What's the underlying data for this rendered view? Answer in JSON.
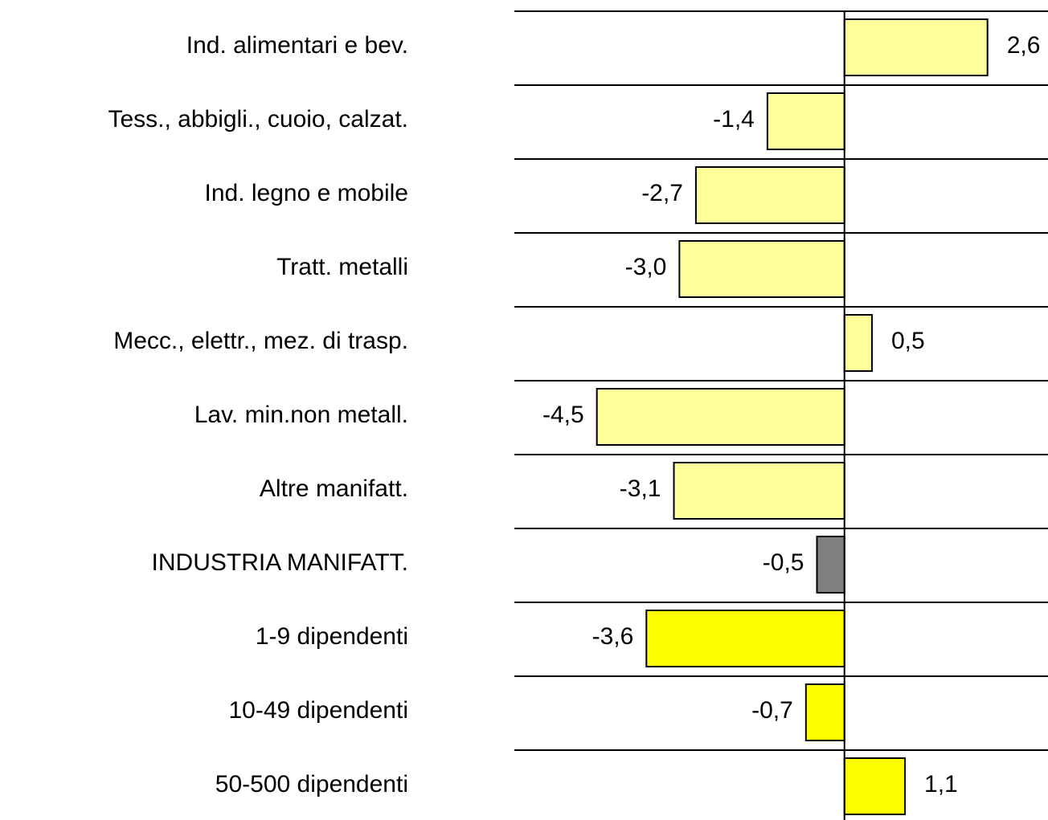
{
  "chart_data": {
    "type": "hbar",
    "categories": [
      "Ind. alimentari e bev.",
      "Tess., abbigli., cuoio, calzat.",
      "Ind. legno e mobile",
      "Tratt. metalli",
      "Mecc., elettr., mez. di trasp.",
      "Lav. min.non metall.",
      "Altre manifatt.",
      "INDUSTRIA MANIFATT.",
      "1-9 dipendenti",
      "10-49 dipendenti",
      "50-500 dipendenti"
    ],
    "values": [
      2.6,
      -1.4,
      -2.7,
      -3.0,
      0.5,
      -4.5,
      -3.1,
      -0.5,
      -3.6,
      -0.7,
      1.1
    ],
    "value_labels": [
      "2,6",
      "-1,4",
      "-2,7",
      "-3,0",
      "0,5",
      "-4,5",
      "-3,1",
      "-0,5",
      "-3,6",
      "-0,7",
      "1,1"
    ],
    "colors": [
      "#ffff99",
      "#ffff99",
      "#ffff99",
      "#ffff99",
      "#ffff99",
      "#ffff99",
      "#ffff99",
      "#808080",
      "#ffff00",
      "#ffff00",
      "#ffff00"
    ],
    "xlim": [
      -6,
      3.7
    ]
  }
}
